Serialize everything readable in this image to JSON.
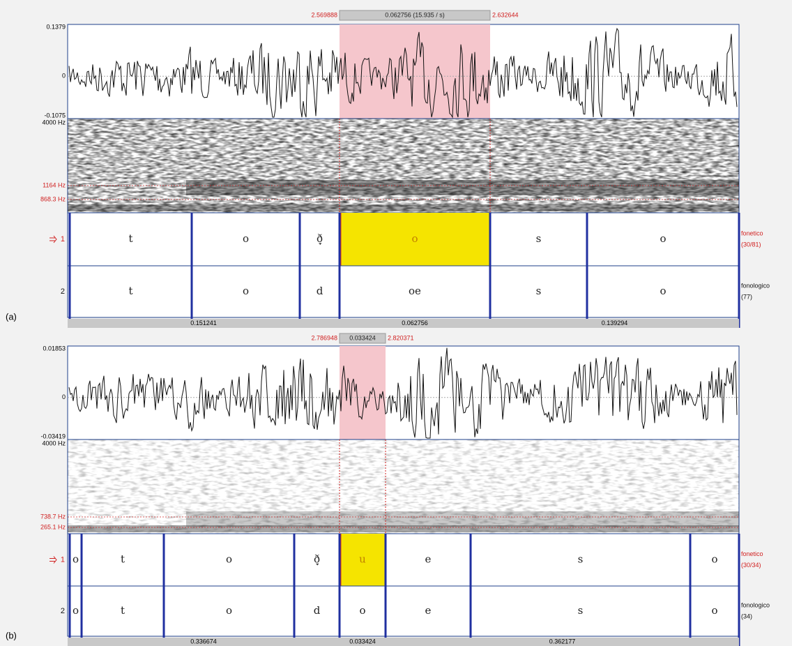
{
  "panels": [
    {
      "label": "(a)",
      "selection": {
        "start": "2.569888",
        "duration": "0.062756 (15.935 / s)",
        "end": "2.632644"
      },
      "waveform_axis": {
        "max": "0.1379",
        "zero": "0",
        "min": "-0.1075"
      },
      "spectrogram_axis": {
        "top": "4000 Hz",
        "upper": "1164 Hz",
        "lower": "868.3 Hz"
      },
      "tiers": [
        {
          "number": "1",
          "name": "fonetico",
          "count": "(30/81)",
          "intervals": [
            "t",
            "o",
            "ð̞",
            "o",
            "s",
            "o"
          ]
        },
        {
          "number": "2",
          "name": "fonologico",
          "count": "(77)",
          "intervals": [
            "t",
            "o",
            "d",
            "oe",
            "s",
            "o"
          ]
        }
      ],
      "durations": [
        "0.151241",
        "0.062756",
        "0.139294"
      ]
    },
    {
      "label": "(b)",
      "selection": {
        "start": "2.786948",
        "duration": "0.033424",
        "end": "2.820371"
      },
      "waveform_axis": {
        "max": "0.01853",
        "zero": "0",
        "min": "-0.03419"
      },
      "spectrogram_axis": {
        "top": "4000 Hz",
        "upper": "738.7 Hz",
        "lower": "265.1 Hz"
      },
      "tiers": [
        {
          "number": "1",
          "name": "fonetico",
          "count": "(30/34)",
          "intervals": [
            "o",
            "t",
            "o",
            "ð̞",
            "u",
            "e",
            "s",
            "o"
          ]
        },
        {
          "number": "2",
          "name": "fonologico",
          "count": "(34)",
          "intervals": [
            "o",
            "t",
            "o",
            "d",
            "o",
            "e",
            "s",
            "o"
          ]
        }
      ],
      "durations": [
        "0.336674",
        "0.033424",
        "0.362177"
      ]
    }
  ]
}
